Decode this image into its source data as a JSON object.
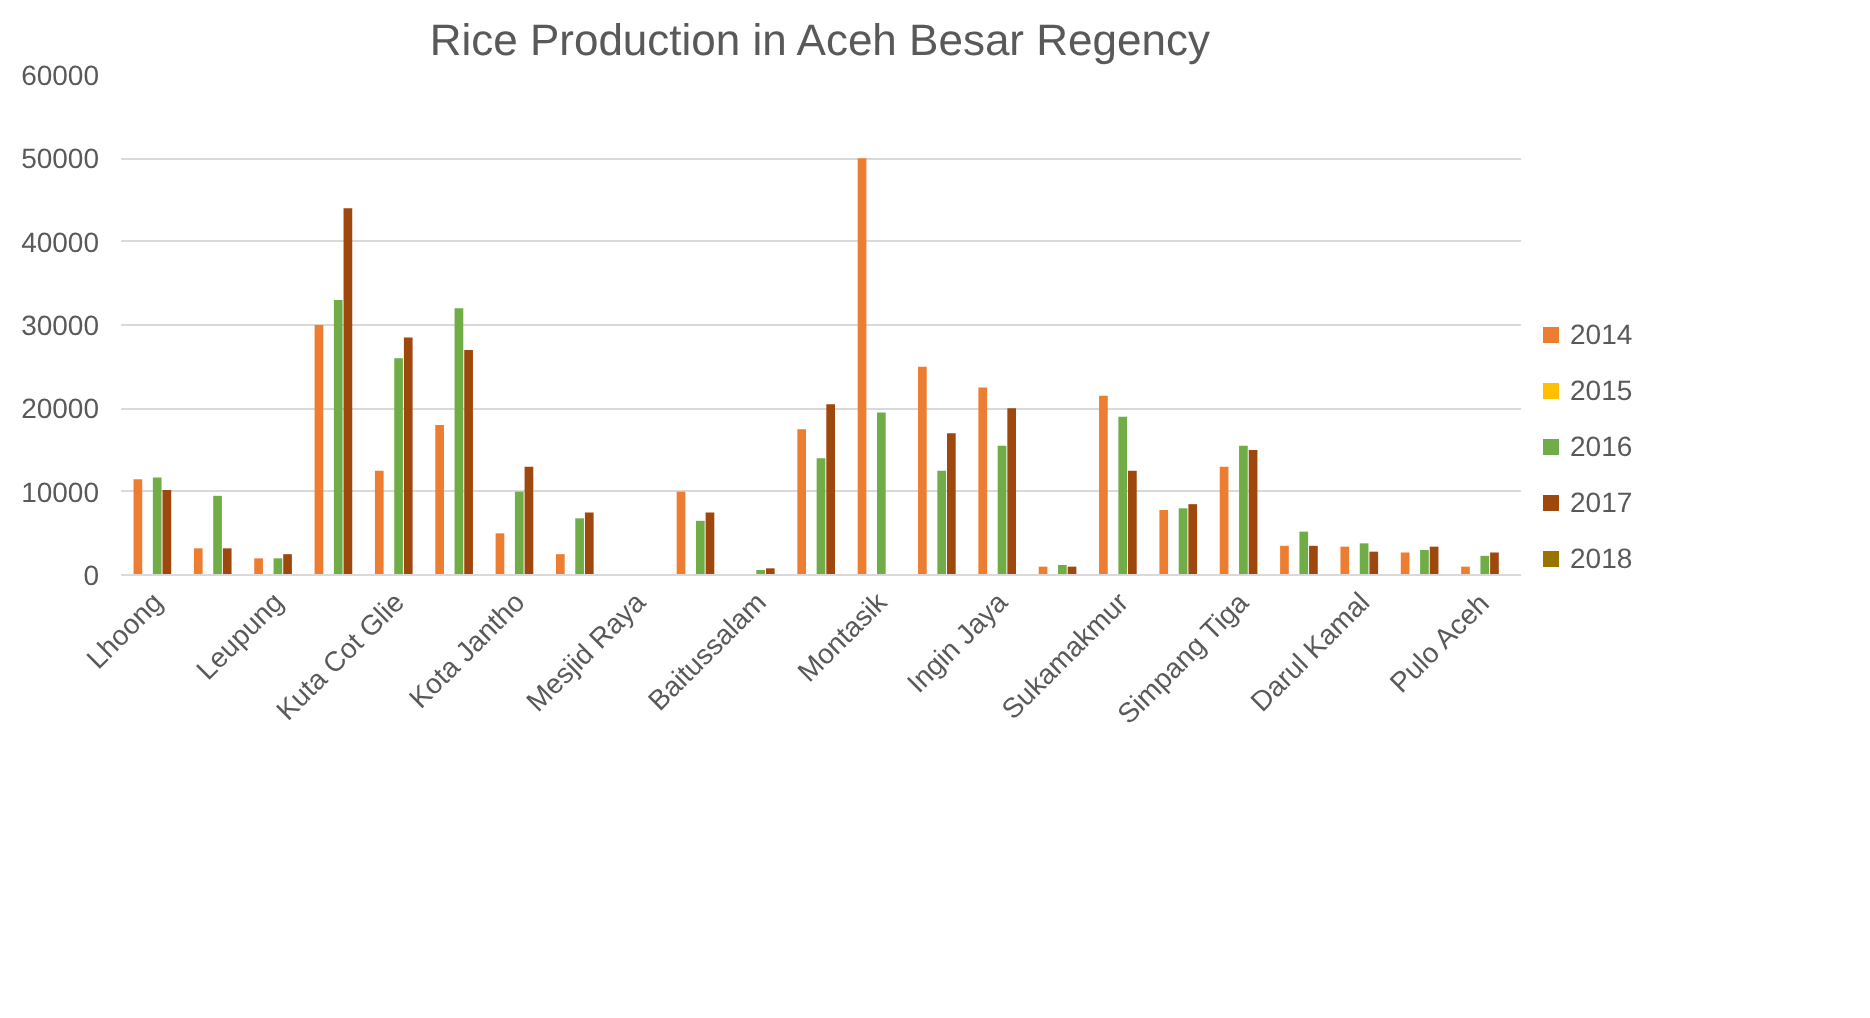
{
  "chart_data": {
    "type": "bar",
    "title": "Rice Production in Aceh Besar Regency",
    "categories": [
      "Lhoong",
      null,
      "Leupung",
      null,
      "Kuta Cot Glie",
      null,
      "Kota Jantho",
      null,
      "Mesjid Raya",
      null,
      "Baitussalam",
      null,
      "Montasik",
      null,
      "Ingin Jaya",
      null,
      "Sukamakmur",
      null,
      "Simpang Tiga",
      null,
      "Darul Kamal",
      null,
      "Pulo Aceh"
    ],
    "series": [
      {
        "name": "2014",
        "color": "#ed7d31",
        "values": [
          11500,
          3200,
          2000,
          30000,
          12500,
          18000,
          5000,
          2500,
          null,
          10000,
          null,
          17500,
          50000,
          25000,
          22500,
          1000,
          21500,
          7800,
          13000,
          3500,
          3400,
          2700,
          1000
        ]
      },
      {
        "name": "2015",
        "color": "#ffc000",
        "values": [
          null,
          null,
          null,
          null,
          null,
          null,
          null,
          null,
          null,
          null,
          null,
          null,
          null,
          null,
          null,
          null,
          null,
          null,
          null,
          null,
          null,
          null,
          null
        ]
      },
      {
        "name": "2016",
        "color": "#70ad47",
        "values": [
          11700,
          9500,
          2000,
          33000,
          26000,
          32000,
          10000,
          6800,
          null,
          6500,
          600,
          14000,
          19500,
          12500,
          15500,
          1200,
          19000,
          8000,
          15500,
          5200,
          3800,
          3000,
          2300
        ]
      },
      {
        "name": "2017",
        "color": "#9e480e",
        "values": [
          10200,
          3200,
          2500,
          44000,
          28500,
          27000,
          13000,
          7500,
          null,
          7500,
          800,
          20500,
          null,
          17000,
          20000,
          1000,
          12500,
          8500,
          15000,
          3500,
          2800,
          3400,
          2700
        ]
      },
      {
        "name": "2018",
        "color": "#997300",
        "values": [
          null,
          null,
          null,
          null,
          null,
          null,
          null,
          null,
          null,
          null,
          null,
          null,
          null,
          null,
          null,
          null,
          null,
          null,
          null,
          null,
          null,
          null,
          null
        ]
      }
    ],
    "ylim": [
      0,
      60000
    ],
    "yticks": [
      0,
      10000,
      20000,
      30000,
      40000,
      50000,
      60000
    ],
    "grid": "y",
    "legend": "right"
  }
}
